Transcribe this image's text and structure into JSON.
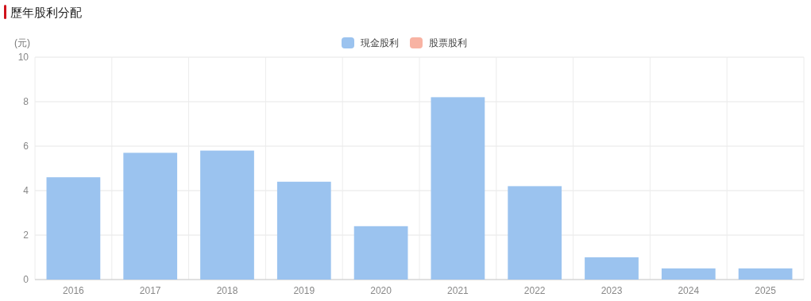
{
  "chart_data": {
    "type": "bar",
    "title": "歷年股利分配",
    "ylabel": "(元)",
    "categories": [
      "2016",
      "2017",
      "2018",
      "2019",
      "2020",
      "2021",
      "2022",
      "2023",
      "2024",
      "2025"
    ],
    "series": [
      {
        "name": "現金股利",
        "color": "#9bc3ef",
        "values": [
          4.6,
          5.7,
          5.8,
          4.4,
          2.4,
          8.2,
          4.2,
          1.0,
          0.5,
          0.5
        ]
      },
      {
        "name": "股票股利",
        "color": "#f8b3a3",
        "values": [
          0,
          0,
          0,
          0,
          0,
          0,
          0,
          0,
          0,
          0
        ]
      }
    ],
    "ylim": [
      0,
      10
    ],
    "yticks": [
      0,
      2,
      4,
      6,
      8,
      10
    ],
    "grid": true,
    "legend": "top"
  }
}
